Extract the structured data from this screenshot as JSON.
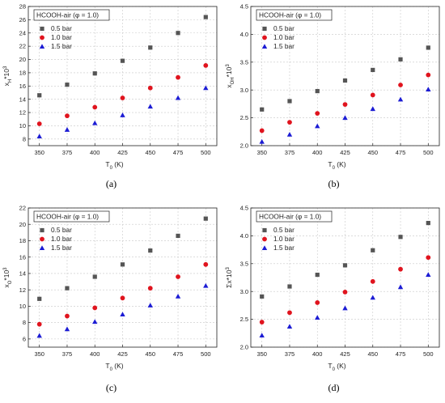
{
  "series_style": [
    {
      "color": "#555555",
      "marker": "square"
    },
    {
      "color": "#e0141e",
      "marker": "circle"
    },
    {
      "color": "#1c1cd4",
      "marker": "triangle"
    }
  ],
  "chart_data": [
    {
      "type": "scatter",
      "caption": "(a)",
      "title": "HCOOH-air (φ = 1.0)",
      "xlabel": "T₀ (K)",
      "ylabel": "x_H*10³",
      "ylabel_main": "x",
      "ylabel_sub": "H",
      "ylabel_tail": "*10",
      "ylabel_sup": "3",
      "x": [
        350,
        375,
        400,
        425,
        450,
        475,
        500
      ],
      "xlim": [
        340,
        510
      ],
      "xticks": [
        350,
        375,
        400,
        425,
        450,
        475,
        500
      ],
      "ylim": [
        7,
        28
      ],
      "yticks": [
        8,
        10,
        12,
        14,
        16,
        18,
        20,
        22,
        24,
        26,
        28
      ],
      "ytick_decimals": 0,
      "grid": true,
      "legend_position": "top-left",
      "series": [
        {
          "name": "0.5 bar",
          "values": [
            14.6,
            16.2,
            17.9,
            19.8,
            21.8,
            24.0,
            26.4
          ]
        },
        {
          "name": "1.0 bar",
          "values": [
            10.3,
            11.5,
            12.8,
            14.2,
            15.7,
            17.3,
            19.1
          ]
        },
        {
          "name": "1.5 bar",
          "values": [
            8.4,
            9.4,
            10.4,
            11.6,
            12.9,
            14.2,
            15.7
          ]
        }
      ]
    },
    {
      "type": "scatter",
      "caption": "(b)",
      "title": "HCOOH-air (φ = 1.0)",
      "xlabel": "T₀ (K)",
      "ylabel": "x_OH*10³",
      "ylabel_main": "x",
      "ylabel_sub": "OH",
      "ylabel_tail": "*10",
      "ylabel_sup": "3",
      "x": [
        350,
        375,
        400,
        425,
        450,
        475,
        500
      ],
      "xlim": [
        340,
        510
      ],
      "xticks": [
        350,
        375,
        400,
        425,
        450,
        475,
        500
      ],
      "ylim": [
        2.0,
        4.5
      ],
      "yticks": [
        2.0,
        2.5,
        3.0,
        3.5,
        4.0,
        4.5
      ],
      "ytick_decimals": 1,
      "grid": true,
      "legend_position": "top-left",
      "series": [
        {
          "name": "0.5 bar",
          "values": [
            2.65,
            2.8,
            2.98,
            3.17,
            3.36,
            3.55,
            3.76
          ]
        },
        {
          "name": "1.0 bar",
          "values": [
            2.27,
            2.42,
            2.58,
            2.74,
            2.91,
            3.09,
            3.27
          ]
        },
        {
          "name": "1.5 bar",
          "values": [
            2.07,
            2.2,
            2.35,
            2.5,
            2.66,
            2.83,
            3.01
          ]
        }
      ]
    },
    {
      "type": "scatter",
      "caption": "(c)",
      "title": "HCOOH-air (φ = 1.0)",
      "xlabel": "T₀ (K)",
      "ylabel": "x_O*10³",
      "ylabel_main": "x",
      "ylabel_sub": "O",
      "ylabel_tail": "*10",
      "ylabel_sup": "3",
      "x": [
        350,
        375,
        400,
        425,
        450,
        475,
        500
      ],
      "xlim": [
        340,
        510
      ],
      "xticks": [
        350,
        375,
        400,
        425,
        450,
        475,
        500
      ],
      "ylim": [
        5,
        22
      ],
      "yticks": [
        6,
        8,
        10,
        12,
        14,
        16,
        18,
        20,
        22
      ],
      "ytick_decimals": 0,
      "grid": true,
      "legend_position": "top-left",
      "series": [
        {
          "name": "0.5 bar",
          "values": [
            10.9,
            12.2,
            13.6,
            15.1,
            16.8,
            18.6,
            20.7
          ]
        },
        {
          "name": "1.0 bar",
          "values": [
            7.8,
            8.8,
            9.8,
            11.0,
            12.2,
            13.6,
            15.1
          ]
        },
        {
          "name": "1.5 bar",
          "values": [
            6.4,
            7.2,
            8.1,
            9.0,
            10.1,
            11.2,
            12.5
          ]
        }
      ]
    },
    {
      "type": "scatter",
      "caption": "(d)",
      "title": "HCOOH-air (φ = 1.0)",
      "xlabel": "T₀ (K)",
      "ylabel": "Σx*10³",
      "ylabel_main": "Σx",
      "ylabel_sub": "",
      "ylabel_tail": "*10",
      "ylabel_sup": "3",
      "x": [
        350,
        375,
        400,
        425,
        450,
        475,
        500
      ],
      "xlim": [
        340,
        510
      ],
      "xticks": [
        350,
        375,
        400,
        425,
        450,
        475,
        500
      ],
      "ylim": [
        2.0,
        4.5
      ],
      "yticks": [
        2.0,
        2.5,
        3.0,
        3.5,
        4.0,
        4.5
      ],
      "ytick_decimals": 1,
      "grid": true,
      "legend_position": "top-left",
      "series": [
        {
          "name": "0.5 bar",
          "values": [
            2.91,
            3.09,
            3.3,
            3.47,
            3.74,
            3.98,
            4.23
          ]
        },
        {
          "name": "1.0 bar",
          "values": [
            2.45,
            2.62,
            2.8,
            2.99,
            3.18,
            3.4,
            3.61
          ]
        },
        {
          "name": "1.5 bar",
          "values": [
            2.21,
            2.37,
            2.53,
            2.7,
            2.89,
            3.08,
            3.3
          ]
        }
      ]
    }
  ]
}
